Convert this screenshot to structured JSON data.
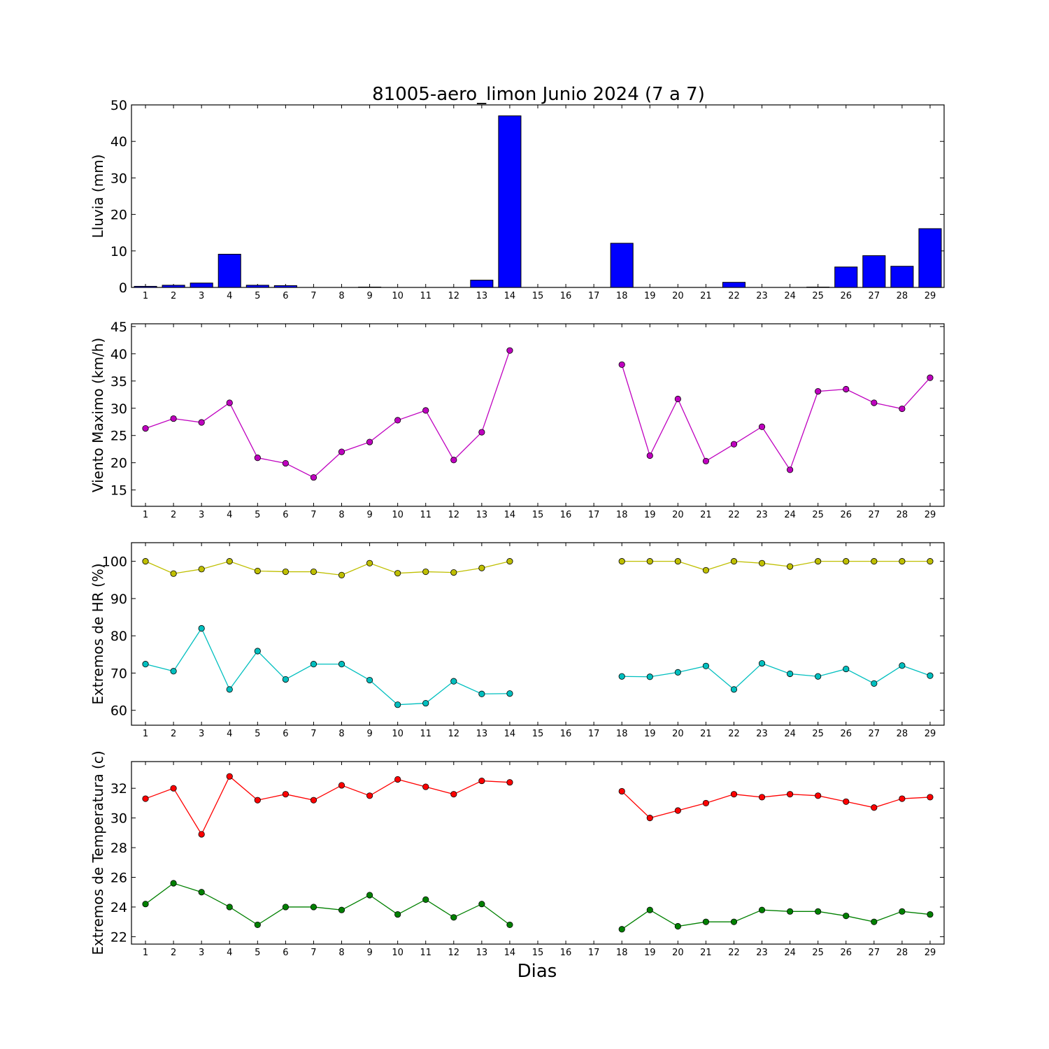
{
  "figure": {
    "title": "81005-aero_limon Junio 2024  (7 a 7)",
    "xlabel": "Dias"
  },
  "chart_data": [
    {
      "type": "bar",
      "ylabel": "Lluvia (mm)",
      "ylim": [
        0,
        50
      ],
      "yticks": [
        0,
        10,
        20,
        30,
        40,
        50
      ],
      "categories": [
        "1",
        "2",
        "3",
        "4",
        "5",
        "6",
        "7",
        "8",
        "9",
        "10",
        "11",
        "12",
        "13",
        "14",
        "15",
        "16",
        "17",
        "18",
        "19",
        "20",
        "21",
        "22",
        "23",
        "24",
        "25",
        "26",
        "27",
        "28",
        "29"
      ],
      "series": [
        {
          "color": "#0000ff",
          "values": [
            0.3,
            0.6,
            1.2,
            9.1,
            0.6,
            0.5,
            0,
            0,
            0.1,
            0,
            0,
            0,
            2.0,
            47.0,
            0,
            0,
            0,
            12.1,
            0,
            0,
            0,
            1.4,
            0,
            0,
            0.1,
            5.6,
            8.7,
            5.8,
            16.1
          ]
        }
      ]
    },
    {
      "type": "line",
      "ylabel": "Viento Maximo (km/h)",
      "ylim": [
        12,
        45.5
      ],
      "yticks": [
        15,
        20,
        25,
        30,
        35,
        40,
        45
      ],
      "categories": [
        "1",
        "2",
        "3",
        "4",
        "5",
        "6",
        "7",
        "8",
        "9",
        "10",
        "11",
        "12",
        "13",
        "14",
        "15",
        "16",
        "17",
        "18",
        "19",
        "20",
        "21",
        "22",
        "23",
        "24",
        "25",
        "26",
        "27",
        "28",
        "29"
      ],
      "series": [
        {
          "color": "#bf00bf",
          "values": [
            26.3,
            28.1,
            27.4,
            31.0,
            20.9,
            19.9,
            17.3,
            22.0,
            23.8,
            27.8,
            29.6,
            20.5,
            25.6,
            40.6,
            null,
            null,
            null,
            38.0,
            21.3,
            31.7,
            20.3,
            23.4,
            26.6,
            18.7,
            33.1,
            33.5,
            31.0,
            29.9,
            35.6
          ]
        }
      ]
    },
    {
      "type": "line",
      "ylabel": "Extremos de HR (%)",
      "ylim": [
        56,
        105
      ],
      "yticks": [
        60,
        70,
        80,
        90,
        100
      ],
      "categories": [
        "1",
        "2",
        "3",
        "4",
        "5",
        "6",
        "7",
        "8",
        "9",
        "10",
        "11",
        "12",
        "13",
        "14",
        "15",
        "16",
        "17",
        "18",
        "19",
        "20",
        "21",
        "22",
        "23",
        "24",
        "25",
        "26",
        "27",
        "28",
        "29"
      ],
      "series": [
        {
          "color": "#bfbf00",
          "values": [
            100,
            96.7,
            97.9,
            100,
            97.4,
            97.2,
            97.2,
            96.3,
            99.5,
            96.8,
            97.2,
            97.0,
            98.2,
            100,
            null,
            null,
            null,
            100,
            100,
            100,
            97.6,
            100,
            99.5,
            98.6,
            100,
            100,
            100,
            100,
            100
          ]
        },
        {
          "color": "#00bfbf",
          "values": [
            72.4,
            70.5,
            82.0,
            65.6,
            75.9,
            68.3,
            72.4,
            72.4,
            68.1,
            61.5,
            61.9,
            67.8,
            64.4,
            64.5,
            null,
            null,
            null,
            69.1,
            69.0,
            70.2,
            71.9,
            65.6,
            72.6,
            69.8,
            69.1,
            71.1,
            67.2,
            72.0,
            69.3
          ]
        }
      ]
    },
    {
      "type": "line",
      "ylabel": "Extremos de Temperatura (c)",
      "ylim": [
        21.5,
        33.8
      ],
      "yticks": [
        22,
        24,
        26,
        28,
        30,
        32
      ],
      "categories": [
        "1",
        "2",
        "3",
        "4",
        "5",
        "6",
        "7",
        "8",
        "9",
        "10",
        "11",
        "12",
        "13",
        "14",
        "15",
        "16",
        "17",
        "18",
        "19",
        "20",
        "21",
        "22",
        "23",
        "24",
        "25",
        "26",
        "27",
        "28",
        "29"
      ],
      "series": [
        {
          "color": "#ff0000",
          "values": [
            31.3,
            32.0,
            28.9,
            32.8,
            31.2,
            31.6,
            31.2,
            32.2,
            31.5,
            32.6,
            32.1,
            31.6,
            32.5,
            32.4,
            null,
            null,
            null,
            31.8,
            30.0,
            30.5,
            31.0,
            31.6,
            31.4,
            31.6,
            31.5,
            31.1,
            30.7,
            31.3,
            31.4
          ]
        },
        {
          "color": "#008000",
          "values": [
            24.2,
            25.6,
            25.0,
            24.0,
            22.8,
            24.0,
            24.0,
            23.8,
            24.8,
            23.5,
            24.5,
            23.3,
            24.2,
            22.8,
            null,
            null,
            null,
            22.5,
            23.8,
            22.7,
            23.0,
            23.0,
            23.8,
            23.7,
            23.7,
            23.4,
            23.0,
            23.7,
            23.5
          ]
        }
      ]
    }
  ]
}
